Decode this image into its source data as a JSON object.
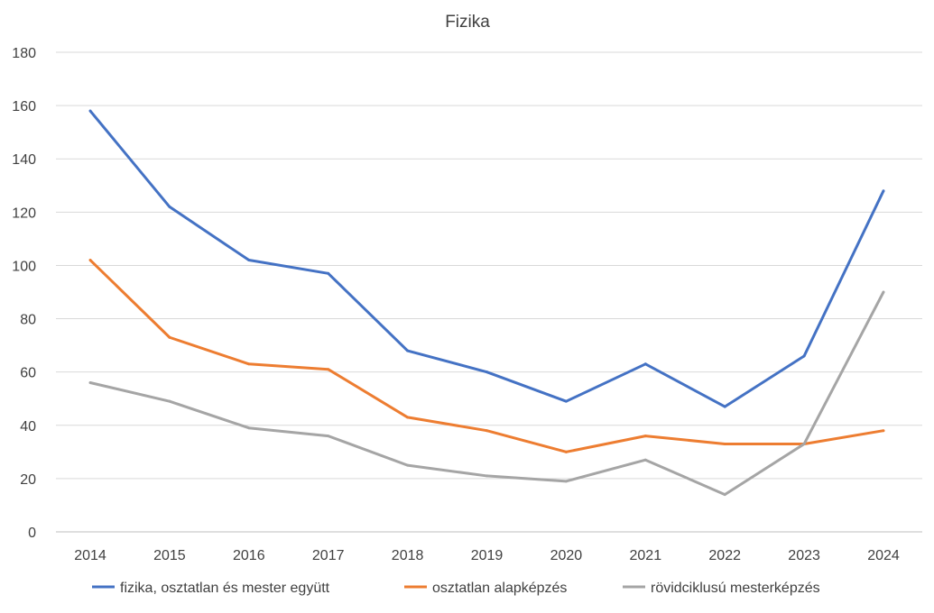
{
  "chart_data": {
    "type": "line",
    "title": "Fizika",
    "xlabel": "",
    "ylabel": "",
    "categories": [
      "2014",
      "2015",
      "2016",
      "2017",
      "2018",
      "2019",
      "2020",
      "2021",
      "2022",
      "2023",
      "2024"
    ],
    "ylim": [
      0,
      180
    ],
    "yticks": [
      "0",
      "20",
      "40",
      "60",
      "80",
      "100",
      "120",
      "140",
      "160",
      "180"
    ],
    "grid": true,
    "legend_position": "bottom",
    "series": [
      {
        "name": "fizika, osztatlan és mester együtt",
        "color": "#4472C4",
        "values": [
          158,
          122,
          102,
          97,
          68,
          60,
          49,
          63,
          47,
          66,
          128
        ]
      },
      {
        "name": "osztatlan alapképzés",
        "color": "#ED7D31",
        "values": [
          102,
          73,
          63,
          61,
          43,
          38,
          30,
          36,
          33,
          33,
          38
        ]
      },
      {
        "name": "rövidciklusú mesterképzés",
        "color": "#A5A5A5",
        "values": [
          56,
          49,
          39,
          36,
          25,
          21,
          19,
          27,
          14,
          33,
          90
        ]
      }
    ]
  }
}
